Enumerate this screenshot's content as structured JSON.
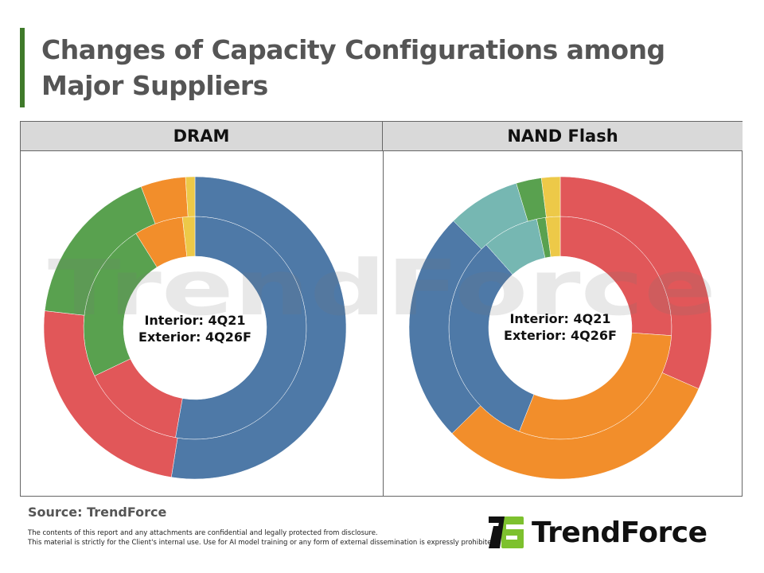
{
  "title": "Changes of Capacity Configurations among Major Suppliers",
  "source": "Source: TrendForce",
  "disclaimer": [
    "The contents of this report and any attachments are confidential and legally protected from disclosure.",
    "This material is strictly for the Client's internal use. Use for AI model training or any form of external dissemination is expressly prohibited."
  ],
  "logo_text": "TrendForce",
  "watermark": "TrendForce",
  "colors": {
    "blue": "#4e79a7",
    "red": "#e15759",
    "green": "#59a14f",
    "orange": "#f28e2b",
    "yellow": "#edc948",
    "teal": "#76b7b2",
    "accent": "#3f7a2a",
    "logo_green": "#7dc12e"
  },
  "chart_data": [
    {
      "type": "pie",
      "subtype": "nested-donut",
      "title": "DRAM",
      "center_label": [
        "Interior: 4Q21",
        "Exterior: 4Q26F"
      ],
      "unit": "%",
      "rings": [
        {
          "ring": "interior",
          "period": "4Q21",
          "segments": [
            {
              "color": "#4e79a7",
              "value": 52.8
            },
            {
              "color": "#e15759",
              "value": 15.1
            },
            {
              "color": "#59a14f",
              "value": 23.2
            },
            {
              "color": "#f28e2b",
              "value": 7.1
            },
            {
              "color": "#edc948",
              "value": 1.8
            }
          ]
        },
        {
          "ring": "exterior",
          "period": "4Q26F",
          "segments": [
            {
              "color": "#4e79a7",
              "value": 52.5
            },
            {
              "color": "#e15759",
              "value": 24.3
            },
            {
              "color": "#59a14f",
              "value": 17.4
            },
            {
              "color": "#f28e2b",
              "value": 4.8
            },
            {
              "color": "#edc948",
              "value": 1.0
            }
          ]
        }
      ]
    },
    {
      "type": "pie",
      "subtype": "nested-donut",
      "title": "NAND Flash",
      "center_label": [
        "Interior: 4Q21",
        "Exterior: 4Q26F"
      ],
      "unit": "%",
      "rings": [
        {
          "ring": "interior",
          "period": "4Q21",
          "segments": [
            {
              "color": "#e15759",
              "value": 26.1
            },
            {
              "color": "#f28e2b",
              "value": 29.9
            },
            {
              "color": "#4e79a7",
              "value": 32.4
            },
            {
              "color": "#76b7b2",
              "value": 8.2
            },
            {
              "color": "#59a14f",
              "value": 1.3
            },
            {
              "color": "#edc948",
              "value": 2.1
            }
          ]
        },
        {
          "ring": "exterior",
          "period": "4Q26F",
          "segments": [
            {
              "color": "#e15759",
              "value": 31.6
            },
            {
              "color": "#f28e2b",
              "value": 31.1
            },
            {
              "color": "#4e79a7",
              "value": 24.8
            },
            {
              "color": "#76b7b2",
              "value": 7.8
            },
            {
              "color": "#59a14f",
              "value": 2.7
            },
            {
              "color": "#edc948",
              "value": 2.0
            }
          ]
        }
      ]
    }
  ]
}
